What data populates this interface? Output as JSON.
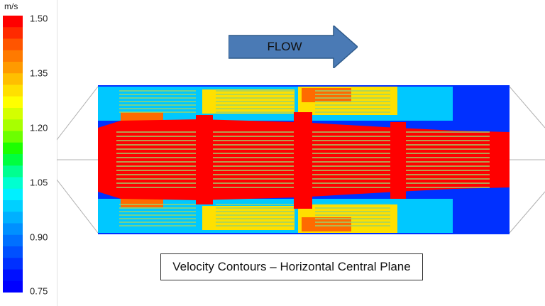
{
  "legend": {
    "unit": "m/s",
    "ticks": [
      "1.50",
      "1.35",
      "1.20",
      "1.05",
      "0.90",
      "0.75"
    ],
    "bands": [
      "#ff0000",
      "#ff2a00",
      "#ff5500",
      "#ff7a00",
      "#ff9a00",
      "#ffbf00",
      "#ffe000",
      "#ffff00",
      "#d4ff00",
      "#a8ff00",
      "#6cff00",
      "#1cff00",
      "#00ff40",
      "#00ff90",
      "#00ffd0",
      "#00f0ff",
      "#00d0ff",
      "#00b0ff",
      "#0090ff",
      "#0070ff",
      "#0050ff",
      "#0030ff",
      "#0010ff",
      "#0000ff"
    ]
  },
  "arrow": {
    "label": "FLOW",
    "color": "#4a7ab5"
  },
  "caption": "Velocity Contours – Horizontal Central Plane",
  "colors": {
    "core": "#ff0000",
    "slow": "#0030ff",
    "mid": "#00c8ff",
    "warm": "#ffe000",
    "fins": "#9bd36a"
  }
}
